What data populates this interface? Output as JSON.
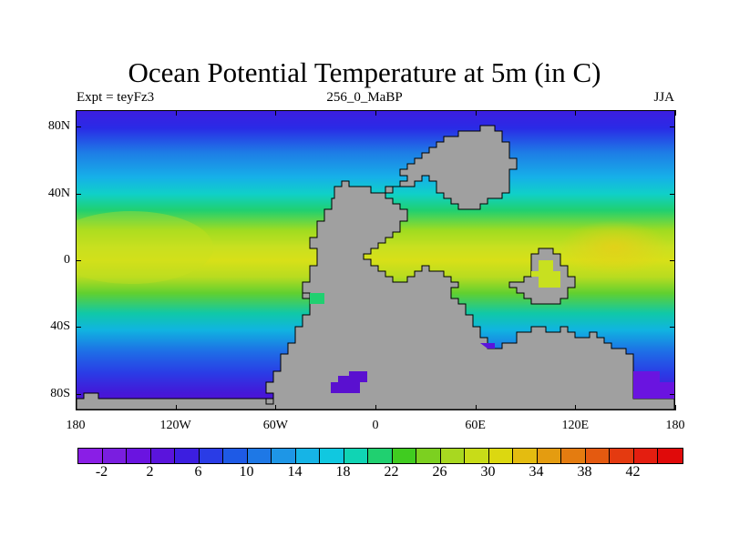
{
  "title": "Ocean Potential Temperature at 5m (in C)",
  "subtitle_left": "Expt = teyFz3",
  "subtitle_center": "256_0_MaBP",
  "subtitle_right": "JJA",
  "map": {
    "ocean_gradient": [
      {
        "lat": 90,
        "color": "#3c1ee0"
      },
      {
        "lat": 80,
        "color": "#2a2ae6"
      },
      {
        "lat": 65,
        "color": "#1e7ce6"
      },
      {
        "lat": 50,
        "color": "#16b0e8"
      },
      {
        "lat": 40,
        "color": "#10d0c8"
      },
      {
        "lat": 30,
        "color": "#20d070"
      },
      {
        "lat": 18,
        "color": "#a0dc20"
      },
      {
        "lat": 8,
        "color": "#c8e020"
      },
      {
        "lat": 0,
        "color": "#d8e018"
      },
      {
        "lat": -10,
        "color": "#b8dc20"
      },
      {
        "lat": -20,
        "color": "#60d030"
      },
      {
        "lat": -32,
        "color": "#10c8a8"
      },
      {
        "lat": -42,
        "color": "#10b4e0"
      },
      {
        "lat": -55,
        "color": "#1e6ee6"
      },
      {
        "lat": -68,
        "color": "#2a3ce6"
      },
      {
        "lat": -80,
        "color": "#4418d8"
      },
      {
        "lat": -90,
        "color": "#5a10d0"
      }
    ],
    "land_color": "#a0a0a0"
  },
  "y_axis": {
    "labels": [
      {
        "text": "80N",
        "lat": 80
      },
      {
        "text": "40N",
        "lat": 40
      },
      {
        "text": "0",
        "lat": 0
      },
      {
        "text": "40S",
        "lat": -40
      },
      {
        "text": "80S",
        "lat": -80
      }
    ]
  },
  "x_axis": {
    "labels": [
      {
        "text": "180",
        "lon": -180
      },
      {
        "text": "120W",
        "lon": -120
      },
      {
        "text": "60W",
        "lon": -60
      },
      {
        "text": "0",
        "lon": 0
      },
      {
        "text": "60E",
        "lon": 60
      },
      {
        "text": "120E",
        "lon": 120
      },
      {
        "text": "180",
        "lon": 180
      }
    ]
  },
  "colorbar": {
    "colors": [
      "#8a1ee6",
      "#7a1ee0",
      "#6a14e0",
      "#5a14dc",
      "#3c1ee0",
      "#2a3ce6",
      "#1e5ae6",
      "#1e78e6",
      "#1e96e6",
      "#16b4e6",
      "#10c8e0",
      "#10d4b4",
      "#20d070",
      "#40cc20",
      "#7cd020",
      "#a8d820",
      "#c8dc18",
      "#dcd810",
      "#e4bc10",
      "#e49c10",
      "#e47c10",
      "#e45a10",
      "#e43a10",
      "#e41e10",
      "#e00a0a"
    ],
    "labels": [
      "-2",
      "2",
      "6",
      "10",
      "14",
      "18",
      "22",
      "26",
      "30",
      "34",
      "38",
      "42"
    ]
  }
}
